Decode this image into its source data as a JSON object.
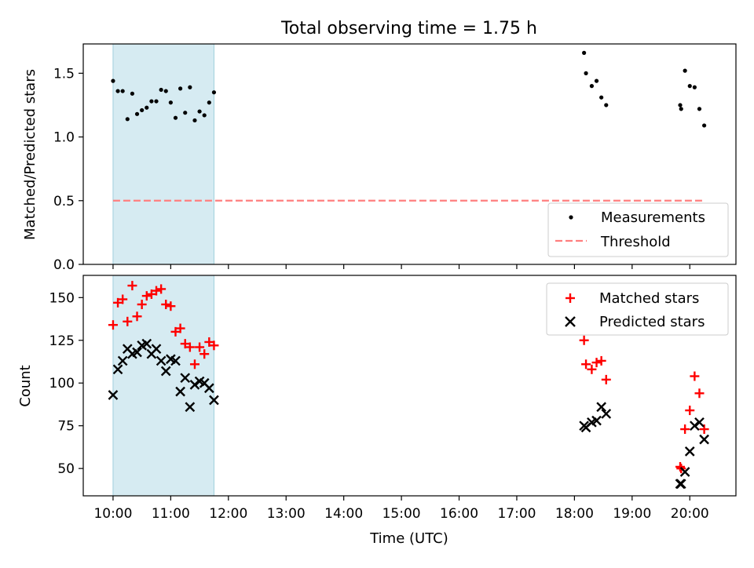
{
  "figure_title": "Total observing time = 1.75 h",
  "xlabel": "Time (UTC)",
  "x_ticks": [
    "10:00",
    "11:00",
    "12:00",
    "13:00",
    "14:00",
    "15:00",
    "16:00",
    "17:00",
    "18:00",
    "19:00",
    "20:00"
  ],
  "chart_data": [
    {
      "type": "scatter",
      "panel": "top",
      "title": "Total observing time = 1.75 h",
      "ylabel": "Matched/Predicted stars",
      "xlabel": "",
      "xlim": [
        "09:29",
        "20:48"
      ],
      "ylim": [
        0,
        1.73
      ],
      "y_ticks": [
        "0.0",
        "0.5",
        "1.0",
        "1.5"
      ],
      "legend_position": "lower-right",
      "shaded_interval": {
        "start": "10:00",
        "end": "11:45",
        "color": "#add8e6"
      },
      "series": [
        {
          "name": "Measurements",
          "marker": "dot",
          "color": "#000000",
          "points": [
            [
              "10:00",
              1.44
            ],
            [
              "10:05",
              1.36
            ],
            [
              "10:10",
              1.36
            ],
            [
              "10:15",
              1.14
            ],
            [
              "10:20",
              1.34
            ],
            [
              "10:25",
              1.18
            ],
            [
              "10:30",
              1.21
            ],
            [
              "10:35",
              1.23
            ],
            [
              "10:40",
              1.28
            ],
            [
              "10:45",
              1.28
            ],
            [
              "10:50",
              1.37
            ],
            [
              "10:55",
              1.36
            ],
            [
              "11:00",
              1.27
            ],
            [
              "11:05",
              1.15
            ],
            [
              "11:10",
              1.38
            ],
            [
              "11:15",
              1.19
            ],
            [
              "11:20",
              1.39
            ],
            [
              "11:25",
              1.13
            ],
            [
              "11:30",
              1.2
            ],
            [
              "11:35",
              1.17
            ],
            [
              "11:40",
              1.27
            ],
            [
              "11:45",
              1.35
            ],
            [
              "18:10",
              1.66
            ],
            [
              "18:12",
              1.5
            ],
            [
              "18:18",
              1.4
            ],
            [
              "18:23",
              1.44
            ],
            [
              "18:28",
              1.31
            ],
            [
              "18:33",
              1.25
            ],
            [
              "19:50",
              1.25
            ],
            [
              "19:51",
              1.22
            ],
            [
              "19:55",
              1.52
            ],
            [
              "20:00",
              1.4
            ],
            [
              "20:05",
              1.39
            ],
            [
              "20:10",
              1.22
            ],
            [
              "20:15",
              1.09
            ]
          ]
        },
        {
          "name": "Threshold",
          "style": "dashed-line",
          "color": "#ff7f7f",
          "points": [
            [
              "10:00",
              0.5
            ],
            [
              "20:15",
              0.5
            ]
          ]
        }
      ]
    },
    {
      "type": "scatter",
      "panel": "bottom",
      "ylabel": "Count",
      "xlabel": "Time (UTC)",
      "xlim": [
        "09:29",
        "20:48"
      ],
      "ylim": [
        34,
        163
      ],
      "y_ticks": [
        "50",
        "75",
        "100",
        "125",
        "150"
      ],
      "legend_position": "upper-right",
      "shaded_interval": {
        "start": "10:00",
        "end": "11:45",
        "color": "#add8e6"
      },
      "series": [
        {
          "name": "Matched stars",
          "marker": "plus",
          "color": "#ff0000",
          "points": [
            [
              "10:00",
              134
            ],
            [
              "10:05",
              147
            ],
            [
              "10:10",
              149
            ],
            [
              "10:15",
              136
            ],
            [
              "10:20",
              157
            ],
            [
              "10:25",
              139
            ],
            [
              "10:30",
              146
            ],
            [
              "10:35",
              151
            ],
            [
              "10:40",
              152
            ],
            [
              "10:45",
              154
            ],
            [
              "10:50",
              155
            ],
            [
              "10:55",
              146
            ],
            [
              "11:00",
              145
            ],
            [
              "11:05",
              130
            ],
            [
              "11:10",
              132
            ],
            [
              "11:15",
              123
            ],
            [
              "11:20",
              121
            ],
            [
              "11:25",
              111
            ],
            [
              "11:30",
              121
            ],
            [
              "11:35",
              117
            ],
            [
              "11:40",
              124
            ],
            [
              "11:45",
              122
            ],
            [
              "18:10",
              125
            ],
            [
              "18:12",
              111
            ],
            [
              "18:18",
              108
            ],
            [
              "18:23",
              112
            ],
            [
              "18:28",
              113
            ],
            [
              "18:33",
              102
            ],
            [
              "19:50",
              51
            ],
            [
              "19:51",
              50
            ],
            [
              "19:55",
              73
            ],
            [
              "20:00",
              84
            ],
            [
              "20:05",
              104
            ],
            [
              "20:10",
              94
            ],
            [
              "20:15",
              73
            ]
          ]
        },
        {
          "name": "Predicted stars",
          "marker": "x",
          "color": "#000000",
          "points": [
            [
              "10:00",
              93
            ],
            [
              "10:05",
              108
            ],
            [
              "10:10",
              113
            ],
            [
              "10:15",
              120
            ],
            [
              "10:20",
              117
            ],
            [
              "10:25",
              118
            ],
            [
              "10:30",
              122
            ],
            [
              "10:35",
              123
            ],
            [
              "10:40",
              117
            ],
            [
              "10:45",
              120
            ],
            [
              "10:50",
              113
            ],
            [
              "10:55",
              107
            ],
            [
              "11:00",
              114
            ],
            [
              "11:05",
              113
            ],
            [
              "11:10",
              95
            ],
            [
              "11:15",
              103
            ],
            [
              "11:20",
              86
            ],
            [
              "11:25",
              99
            ],
            [
              "11:30",
              101
            ],
            [
              "11:35",
              100
            ],
            [
              "11:40",
              97
            ],
            [
              "11:45",
              90
            ],
            [
              "18:10",
              75
            ],
            [
              "18:12",
              74
            ],
            [
              "18:18",
              77
            ],
            [
              "18:23",
              78
            ],
            [
              "18:28",
              86
            ],
            [
              "18:33",
              82
            ],
            [
              "19:50",
              41
            ],
            [
              "19:51",
              41
            ],
            [
              "19:55",
              48
            ],
            [
              "20:00",
              60
            ],
            [
              "20:05",
              75
            ],
            [
              "20:10",
              77
            ],
            [
              "20:15",
              67
            ]
          ]
        }
      ]
    }
  ]
}
